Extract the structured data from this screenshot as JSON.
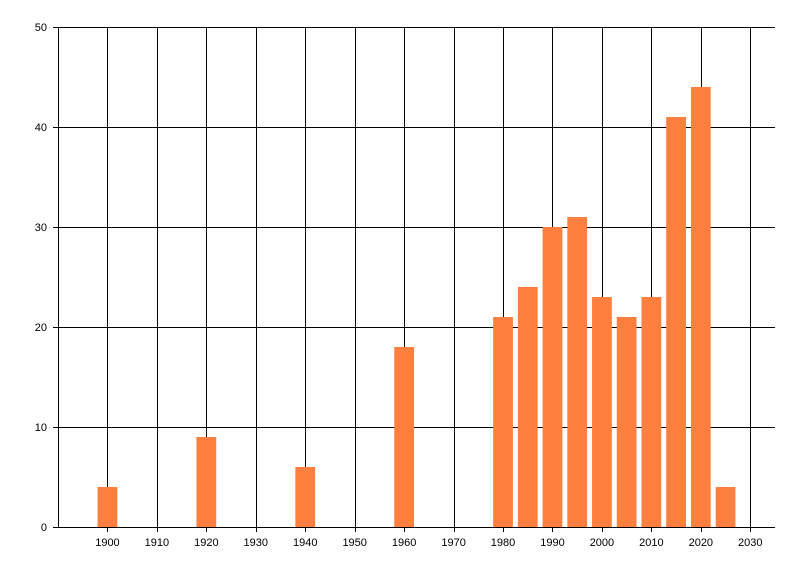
{
  "chart_data": {
    "type": "bar",
    "x": [
      1900,
      1920,
      1940,
      1960,
      1980,
      1985,
      1990,
      1995,
      2000,
      2005,
      2010,
      2015,
      2020,
      2025
    ],
    "values": [
      4,
      9,
      6,
      18,
      21,
      24,
      30,
      31,
      23,
      21,
      23,
      41,
      44,
      4
    ],
    "xlim": [
      1890,
      2035
    ],
    "ylim": [
      0,
      50
    ],
    "x_ticks": [
      1900,
      1910,
      1920,
      1930,
      1940,
      1950,
      1960,
      1970,
      1980,
      1990,
      2000,
      2010,
      2020,
      2030
    ],
    "y_ticks": [
      0,
      10,
      20,
      30,
      40,
      50
    ],
    "title": "",
    "xlabel": "",
    "ylabel": "",
    "grid": true,
    "colors": {
      "bar": "#ff7f3f",
      "grid": "#000000",
      "axis": "#000000"
    }
  }
}
